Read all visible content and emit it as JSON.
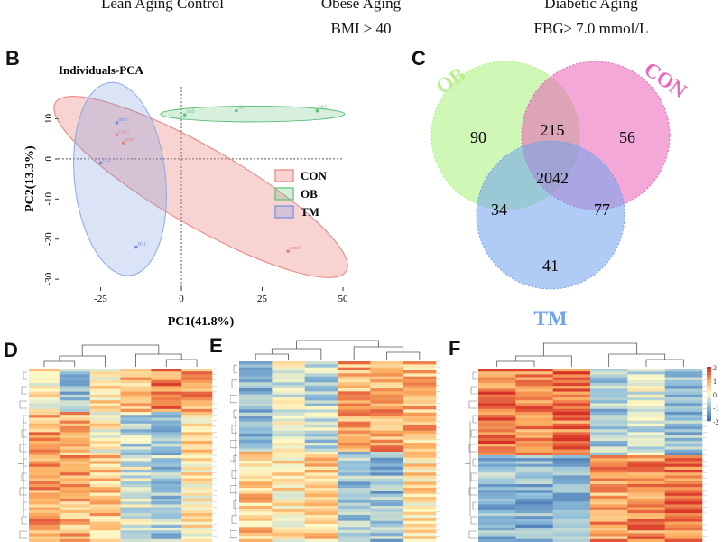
{
  "header": {
    "col1_line1": "Lean Aging Control",
    "col2_line1": "Obese Aging",
    "col2_line2": "BMI ≥ 40",
    "col3_line1": "Diabetic Aging",
    "col3_line2": "FBG≥ 7.0 mmol/L"
  },
  "panels": {
    "b": "B",
    "c": "C",
    "d": "D",
    "e": "E",
    "f": "F"
  },
  "colors": {
    "con": "#e8827e",
    "ob": "#5fbf77",
    "tm": "#6f8fe0",
    "venn_ob": "#a7f07a",
    "venn_con": "#ea60b8",
    "venn_tm": "#6fa2ee"
  },
  "chart_data": [
    {
      "type": "scatter",
      "title": "Individuals-PCA",
      "xlabel": "PC1(41.8%)",
      "ylabel": "PC2(13.3%)",
      "xlim": [
        -38,
        50
      ],
      "ylim": [
        -32,
        18
      ],
      "xticks": [
        "-25",
        "0",
        "25",
        "50"
      ],
      "xtick_values": [
        -25,
        0,
        25,
        50
      ],
      "yticks": [
        "10",
        "0",
        "-10",
        "-20",
        "-30"
      ],
      "ytick_values": [
        10,
        0,
        -10,
        -20,
        -30
      ],
      "legend": [
        "CON",
        "OB",
        "TM"
      ],
      "legend_position": "right",
      "series": [
        {
          "name": "CON",
          "points": [
            {
              "x": -20,
              "y": 6,
              "label": "con2"
            },
            {
              "x": -18,
              "y": 4,
              "label": "con1"
            },
            {
              "x": 33,
              "y": -23,
              "label": "con3"
            }
          ]
        },
        {
          "name": "OB",
          "points": [
            {
              "x": 1,
              "y": 11,
              "label": "ob3"
            },
            {
              "x": 17,
              "y": 12,
              "label": "ob1"
            },
            {
              "x": 42,
              "y": 12,
              "label": "ob2"
            }
          ]
        },
        {
          "name": "TM",
          "points": [
            {
              "x": -20,
              "y": 9,
              "label": "tm3"
            },
            {
              "x": -25,
              "y": -1,
              "label": "tm2"
            },
            {
              "x": -14,
              "y": -22,
              "label": "tm1"
            }
          ]
        }
      ]
    },
    {
      "type": "venn",
      "sets": [
        "OB",
        "CON",
        "TM"
      ],
      "regions": {
        "ob_only": 90,
        "con_only": 56,
        "tm_only": 41,
        "ob_con": 215,
        "ob_tm": 34,
        "con_tm": 77,
        "all": 2042
      }
    },
    {
      "type": "heatmap",
      "panel": "D",
      "rows": 60,
      "columns": 6
    },
    {
      "type": "heatmap",
      "panel": "E",
      "rows": 60,
      "columns": 6
    },
    {
      "type": "heatmap",
      "panel": "F",
      "rows": 60,
      "columns": 6,
      "legend_scale": [
        "2",
        "1",
        "0",
        "-1",
        "-2"
      ]
    }
  ]
}
